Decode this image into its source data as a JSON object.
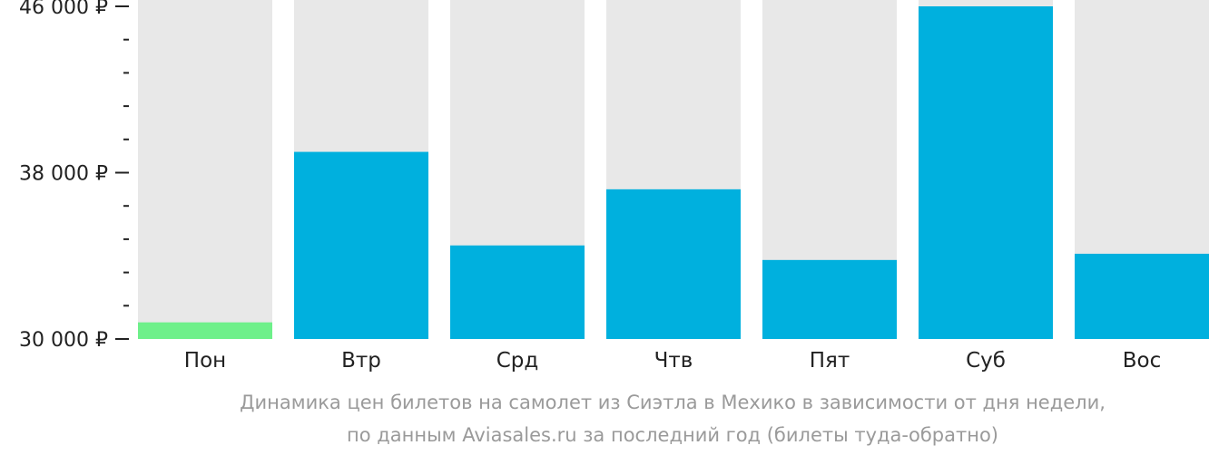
{
  "chart_data": {
    "type": "bar",
    "categories": [
      "Пон",
      "Втр",
      "Срд",
      "Чтв",
      "Пят",
      "Суб",
      "Вос"
    ],
    "values": [
      30800,
      39000,
      34500,
      37200,
      33800,
      46000,
      34100
    ],
    "highlight_index": 0,
    "ylim": [
      30000,
      46000
    ],
    "y_ticks": [
      {
        "value": 46000,
        "label": "46 000 ₽"
      },
      {
        "value": 38000,
        "label": "38 000 ₽"
      },
      {
        "value": 30000,
        "label": "30 000 ₽"
      }
    ],
    "minor_tick_step": 1600,
    "grid": false,
    "colors": {
      "bar": "#00b0de",
      "highlight": "#6ef08a",
      "bar_background": "#e8e8e8",
      "axis_text": "#222222",
      "caption_text": "#9a9a9a"
    }
  },
  "caption": {
    "line1": "Динамика цен билетов на самолет из Сиэтла в Мехико в зависимости от дня недели,",
    "line2": "по данным Aviasales.ru за последний год (билеты туда-обратно)"
  }
}
